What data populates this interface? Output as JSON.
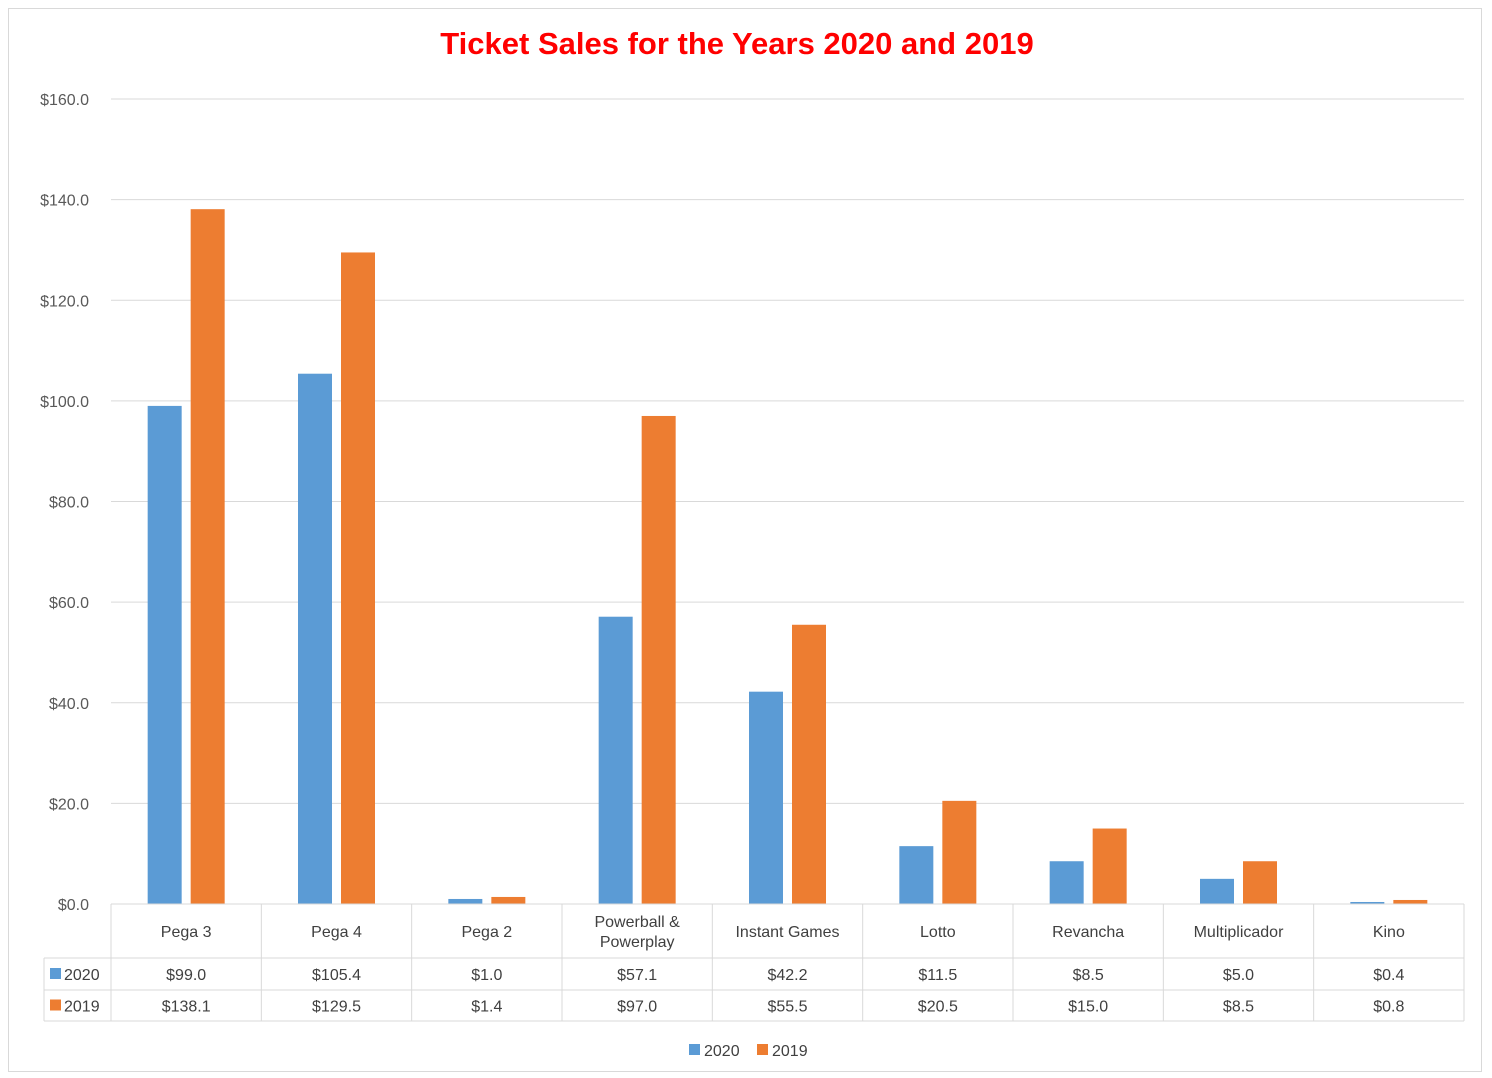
{
  "chart_data": {
    "type": "bar",
    "title": "Ticket Sales for the Years 2020 and 2019",
    "categories": [
      "Pega 3",
      "Pega 4",
      "Pega 2",
      "Powerball & Powerplay",
      "Instant Games",
      "Lotto",
      "Revancha",
      "Multiplicador",
      "Kino"
    ],
    "category_lines": [
      [
        "Pega 3"
      ],
      [
        "Pega 4"
      ],
      [
        "Pega 2"
      ],
      [
        "Powerball &",
        "Powerplay"
      ],
      [
        "Instant Games"
      ],
      [
        "Lotto"
      ],
      [
        "Revancha"
      ],
      [
        "Multiplicador"
      ],
      [
        "Kino"
      ]
    ],
    "series": [
      {
        "name": "2020",
        "color": "#5b9bd5",
        "values": [
          99.0,
          105.4,
          1.0,
          57.1,
          42.2,
          11.5,
          8.5,
          5.0,
          0.4
        ],
        "labels": [
          "$99.0",
          "$105.4",
          "$1.0",
          "$57.1",
          "$42.2",
          "$11.5",
          "$8.5",
          "$5.0",
          "$0.4"
        ]
      },
      {
        "name": "2019",
        "color": "#ed7d31",
        "values": [
          138.1,
          129.5,
          1.4,
          97.0,
          55.5,
          20.5,
          15.0,
          8.5,
          0.8
        ],
        "labels": [
          "$138.1",
          "$129.5",
          "$1.4",
          "$97.0",
          "$55.5",
          "$20.5",
          "$15.0",
          "$8.5",
          "$0.8"
        ]
      }
    ],
    "ylim": [
      0,
      160
    ],
    "yticks": [
      0,
      20,
      40,
      60,
      80,
      100,
      120,
      140,
      160
    ],
    "ytick_labels": [
      "$0.0",
      "$20.0",
      "$40.0",
      "$60.0",
      "$80.0",
      "$100.0",
      "$120.0",
      "$140.0",
      "$160.0"
    ],
    "grid": true,
    "data_table": true,
    "legend_position": "bottom",
    "title_color": "#ff0000"
  }
}
